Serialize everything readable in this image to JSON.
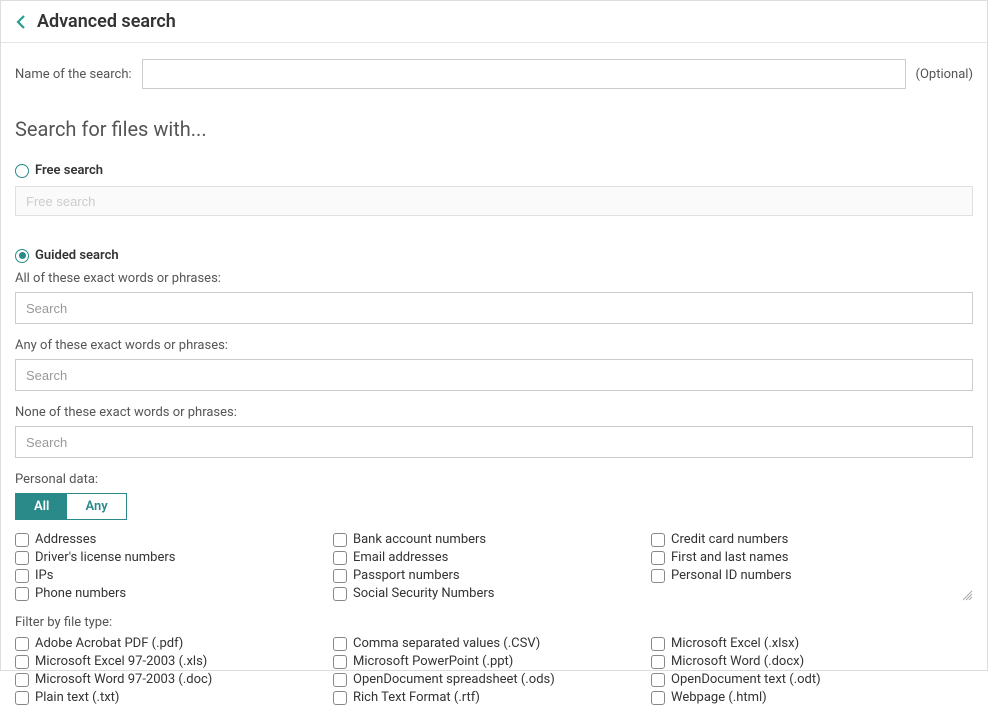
{
  "header": {
    "title": "Advanced search"
  },
  "nameRow": {
    "label": "Name of the search:",
    "value": "",
    "optional": "(Optional)"
  },
  "sectionTitle": "Search for files with...",
  "freeSearch": {
    "radioLabel": "Free search",
    "placeholder": "Free search",
    "selected": false
  },
  "guidedSearch": {
    "radioLabel": "Guided search",
    "selected": true,
    "allOf": {
      "label": "All of these exact words or phrases:",
      "placeholder": "Search"
    },
    "anyOf": {
      "label": "Any of these exact words or phrases:",
      "placeholder": "Search"
    },
    "noneOf": {
      "label": "None of these exact words or phrases:",
      "placeholder": "Search"
    }
  },
  "personalData": {
    "label": "Personal data:",
    "toggle": {
      "all": "All",
      "any": "Any",
      "active": "all"
    },
    "items": [
      "Addresses",
      "Bank account numbers",
      "Credit card numbers",
      "Driver's license numbers",
      "Email addresses",
      "First and last names",
      "IPs",
      "Passport numbers",
      "Personal ID numbers",
      "Phone numbers",
      "Social Security Numbers"
    ]
  },
  "fileType": {
    "label": "Filter by file type:",
    "items": [
      "Adobe Acrobat PDF (.pdf)",
      "Comma separated values (.CSV)",
      "Microsoft Excel (.xlsx)",
      "Microsoft Excel 97-2003 (.xls)",
      "Microsoft PowerPoint (.ppt)",
      "Microsoft Word (.docx)",
      "Microsoft Word 97-2003 (.doc)",
      "OpenDocument spreadsheet (.ods)",
      "OpenDocument text (.odt)",
      "Plain text (.txt)",
      "Rich Text Format (.rtf)",
      "Webpage (.html)"
    ]
  },
  "colors": {
    "accent": "#2a8a8a",
    "border": "#ccc",
    "textMuted": "#555"
  }
}
